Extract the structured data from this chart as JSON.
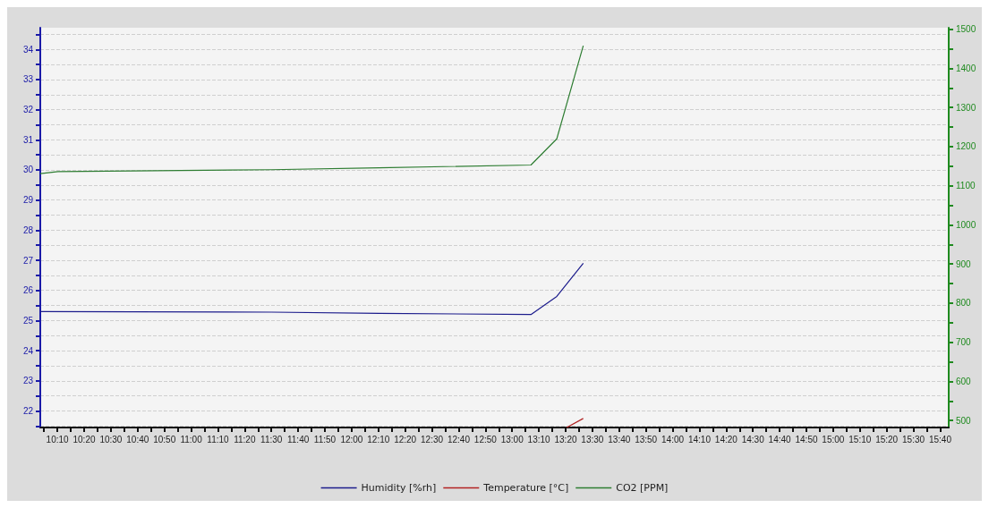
{
  "chart_data": {
    "type": "line",
    "xlim": [
      10.06,
      15.72
    ],
    "ylim": [
      21.45,
      34.72
    ],
    "y2lim": [
      482,
      1504
    ],
    "xticks": [
      {
        "value": 10.08333,
        "label": null
      },
      {
        "value": 10.16667,
        "label": "10:10"
      },
      {
        "value": 10.25,
        "label": null
      },
      {
        "value": 10.33333,
        "label": "10:20"
      },
      {
        "value": 10.41667,
        "label": null
      },
      {
        "value": 10.5,
        "label": "10:30"
      },
      {
        "value": 10.58333,
        "label": null
      },
      {
        "value": 10.66667,
        "label": "10:40"
      },
      {
        "value": 10.75,
        "label": null
      },
      {
        "value": 10.83333,
        "label": "10:50"
      },
      {
        "value": 10.91667,
        "label": null
      },
      {
        "value": 11,
        "label": "11:00"
      },
      {
        "value": 11.08333,
        "label": null
      },
      {
        "value": 11.16667,
        "label": "11:10"
      },
      {
        "value": 11.25,
        "label": null
      },
      {
        "value": 11.33333,
        "label": "11:20"
      },
      {
        "value": 11.41667,
        "label": null
      },
      {
        "value": 11.5,
        "label": "11:30"
      },
      {
        "value": 11.58333,
        "label": null
      },
      {
        "value": 11.66667,
        "label": "11:40"
      },
      {
        "value": 11.75,
        "label": null
      },
      {
        "value": 11.83333,
        "label": "11:50"
      },
      {
        "value": 11.91667,
        "label": null
      },
      {
        "value": 12,
        "label": "12:00"
      },
      {
        "value": 12.08333,
        "label": null
      },
      {
        "value": 12.16667,
        "label": "12:10"
      },
      {
        "value": 12.25,
        "label": null
      },
      {
        "value": 12.33333,
        "label": "12:20"
      },
      {
        "value": 12.41667,
        "label": null
      },
      {
        "value": 12.5,
        "label": "12:30"
      },
      {
        "value": 12.58333,
        "label": null
      },
      {
        "value": 12.66667,
        "label": "12:40"
      },
      {
        "value": 12.75,
        "label": null
      },
      {
        "value": 12.83333,
        "label": "12:50"
      },
      {
        "value": 12.91667,
        "label": null
      },
      {
        "value": 13,
        "label": "13:00"
      },
      {
        "value": 13.08333,
        "label": null
      },
      {
        "value": 13.16667,
        "label": "13:10"
      },
      {
        "value": 13.25,
        "label": null
      },
      {
        "value": 13.33333,
        "label": "13:20"
      },
      {
        "value": 13.41667,
        "label": null
      },
      {
        "value": 13.5,
        "label": "13:30"
      },
      {
        "value": 13.58333,
        "label": null
      },
      {
        "value": 13.66667,
        "label": "13:40"
      },
      {
        "value": 13.75,
        "label": null
      },
      {
        "value": 13.83333,
        "label": "13:50"
      },
      {
        "value": 13.91667,
        "label": null
      },
      {
        "value": 14,
        "label": "14:00"
      },
      {
        "value": 14.08333,
        "label": null
      },
      {
        "value": 14.16667,
        "label": "14:10"
      },
      {
        "value": 14.25,
        "label": null
      },
      {
        "value": 14.33333,
        "label": "14:20"
      },
      {
        "value": 14.41667,
        "label": null
      },
      {
        "value": 14.5,
        "label": "14:30"
      },
      {
        "value": 14.58333,
        "label": null
      },
      {
        "value": 14.66667,
        "label": "14:40"
      },
      {
        "value": 14.75,
        "label": null
      },
      {
        "value": 14.83333,
        "label": "14:50"
      },
      {
        "value": 14.91667,
        "label": null
      },
      {
        "value": 15,
        "label": "15:00"
      },
      {
        "value": 15.08333,
        "label": null
      },
      {
        "value": 15.16667,
        "label": "15:10"
      },
      {
        "value": 15.25,
        "label": null
      },
      {
        "value": 15.33333,
        "label": "15:20"
      },
      {
        "value": 15.41667,
        "label": null
      },
      {
        "value": 15.5,
        "label": "15:30"
      },
      {
        "value": 15.58333,
        "label": null
      },
      {
        "value": 15.66667,
        "label": "15:40"
      }
    ],
    "yticks": [
      {
        "value": 21.5,
        "label": null
      },
      22,
      {
        "value": 22.5,
        "label": null
      },
      23,
      {
        "value": 23.5,
        "label": null
      },
      24,
      {
        "value": 24.5,
        "label": null
      },
      25,
      {
        "value": 25.5,
        "label": null
      },
      26,
      {
        "value": 26.5,
        "label": null
      },
      27,
      {
        "value": 27.5,
        "label": null
      },
      28,
      {
        "value": 28.5,
        "label": null
      },
      29,
      {
        "value": 29.5,
        "label": null
      },
      30,
      {
        "value": 30.5,
        "label": null
      },
      31,
      {
        "value": 31.5,
        "label": null
      },
      32,
      {
        "value": 32.5,
        "label": null
      },
      33,
      {
        "value": 33.5,
        "label": null
      },
      34,
      {
        "value": 34.5,
        "label": null
      }
    ],
    "y2ticks": [
      500,
      {
        "value": 550,
        "label": null
      },
      600,
      {
        "value": 650,
        "label": null
      },
      700,
      {
        "value": 750,
        "label": null
      },
      800,
      {
        "value": 850,
        "label": null
      },
      900,
      {
        "value": 950,
        "label": null
      },
      1000,
      {
        "value": 1050,
        "label": null
      },
      1100,
      {
        "value": 1150,
        "label": null
      },
      1200,
      {
        "value": 1250,
        "label": null
      },
      1300,
      {
        "value": 1350,
        "label": null
      },
      1400,
      {
        "value": 1450,
        "label": null
      },
      1500
    ],
    "grid": "y",
    "legend": "bottom",
    "marker": "none",
    "line_style": "solid",
    "series": [
      {
        "name": "Humidity [%rh]",
        "color": "#1c1c8c",
        "x": [
          10.06,
          11.5,
          12.17,
          13.117,
          13.278,
          13.443
        ],
        "values": [
          25.3,
          25.28,
          25.24,
          25.2,
          25.8,
          26.9
        ]
      },
      {
        "name": "Temperature [°C]",
        "color": "#b22222",
        "x": [
          13.34,
          13.443
        ],
        "values": [
          21.45,
          21.75
        ]
      },
      {
        "name": "CO2 [PPM]",
        "color": "#2e7d32",
        "axis": "y2",
        "x": [
          10.06,
          10.17,
          11.5,
          12.17,
          13.117,
          13.278,
          13.443
        ],
        "values": [
          1131,
          1136,
          1141,
          1146,
          1153,
          1220,
          1458
        ]
      }
    ]
  }
}
